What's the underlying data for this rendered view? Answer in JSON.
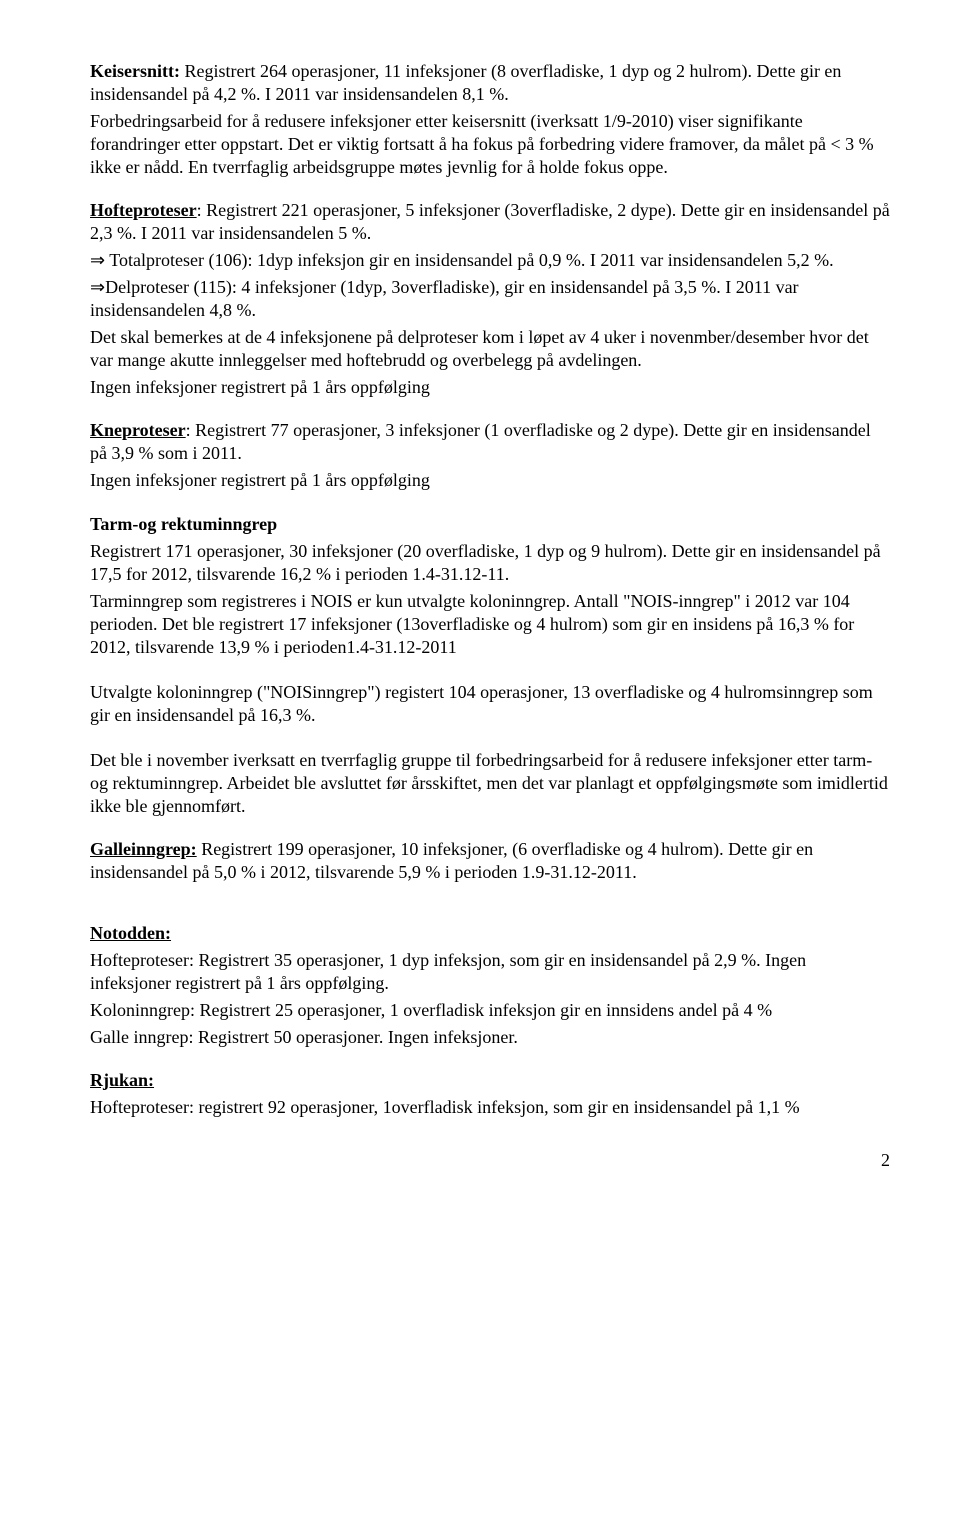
{
  "keisersnitt": {
    "label": "Keisersnitt:",
    "text": " Registrert 264 operasjoner, 11 infeksjoner (8 overfladiske, 1 dyp og 2 hulrom). Dette gir en insidensandel på 4,2 %. I 2011 var insidensandelen 8,1 %.",
    "p2": "Forbedringsarbeid for å redusere infeksjoner etter keisersnitt (iverksatt 1/9-2010) viser signifikante forandringer etter oppstart. Det er viktig fortsatt å ha fokus på forbedring videre framover, da målet på < 3 % ikke er nådd. En tverrfaglig arbeidsgruppe møtes jevnlig for å holde fokus oppe."
  },
  "hofteproteser": {
    "label": "Hofteproteser",
    "text": ": Registrert 221 operasjoner, 5 infeksjoner (3overfladiske, 2 dype). Dette gir en insidensandel på 2,3 %. I 2011 var insidensandelen 5 %.",
    "total": "⇒ Totalproteser (106): 1dyp infeksjon gir en insidensandel på 0,9 %.  I 2011 var insidensandelen 5,2 %.",
    "del": "⇒Delproteser (115): 4 infeksjoner (1dyp, 3overfladiske), gir en insidensandel på 3,5 %.  I 2011 var insidensandelen 4,8 %.",
    "note": "Det skal bemerkes at de 4 infeksjonene på delproteser kom i løpet av 4 uker i novenmber/desember hvor det var mange akutte innleggelser med hoftebrudd og overbelegg på avdelingen.",
    "followup": "Ingen infeksjoner registrert på 1 års oppfølging"
  },
  "kneproteser": {
    "label": "Kneproteser",
    "text": ": Registrert 77 operasjoner, 3 infeksjoner (1 overfladiske og 2 dype). Dette gir en insidensandel på 3,9 % som i 2011.",
    "followup": "Ingen infeksjoner registrert på 1 års oppfølging"
  },
  "tarm": {
    "label": "Tarm-og rektuminngrep",
    "p1": "Registrert 171 operasjoner, 30 infeksjoner (20 overfladiske, 1 dyp og 9 hulrom). Dette gir en insidensandel på 17,5 for 2012, tilsvarende 16,2 % i perioden 1.4-31.12-11.",
    "p2": "Tarminngrep som registreres i NOIS er kun utvalgte koloninngrep. Antall \"NOIS-inngrep\" i 2012 var 104 perioden. Det ble registrert 17 infeksjoner (13overfladiske og 4 hulrom) som gir en insidens på 16,3 % for 2012, tilsvarende 13,9 % i perioden1.4-31.12-2011",
    "p3": "Utvalgte koloninngrep (\"NOISinngrep\") registert 104 operasjoner, 13 overfladiske og 4 hulromsinngrep som gir en insidensandel på 16,3 %.",
    "p4": "Det ble i november iverksatt en tverrfaglig gruppe til forbedringsarbeid for å redusere infeksjoner etter tarm-og rektuminngrep. Arbeidet ble avsluttet før årsskiftet, men det var planlagt et oppfølgingsmøte som imidlertid ikke ble gjennomført."
  },
  "galle": {
    "label": "Galleinngrep:",
    "text": " Registrert 199 operasjoner, 10 infeksjoner, (6 overfladiske og 4 hulrom). Dette gir en insidensandel på 5,0 % i 2012, tilsvarende 5,9 % i perioden 1.9-31.12-2011."
  },
  "notodden": {
    "label": "Notodden:",
    "hofte": "Hofteproteser: Registrert 35 operasjoner, 1 dyp infeksjon, som gir en insidensandel på 2,9 %. Ingen infeksjoner registrert på 1 års oppfølging.",
    "kolon": "Koloninngrep: Registrert 25 operasjoner, 1 overfladisk infeksjon gir en innsidens andel på 4 %",
    "galle": "Galle inngrep: Registrert 50 operasjoner. Ingen infeksjoner."
  },
  "rjukan": {
    "label": "Rjukan:",
    "hofte": "Hofteproteser: registrert 92 operasjoner, 1overfladisk infeksjon, som gir en insidensandel på 1,1 %"
  },
  "page": "2"
}
